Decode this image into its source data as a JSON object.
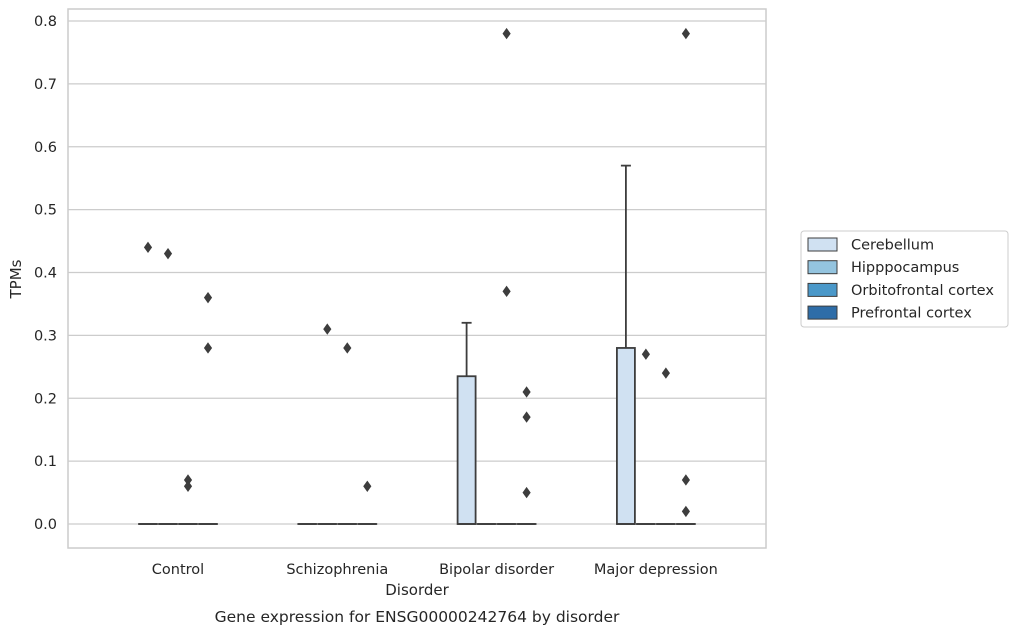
{
  "caption": "Gene expression for ENSG00000242764 by disorder",
  "chart_data": {
    "type": "box",
    "xlabel": "Disorder",
    "ylabel": "TPMs",
    "ylim": [
      -0.038,
      0.82
    ],
    "yticks": [
      0.0,
      0.1,
      0.2,
      0.3,
      0.4,
      0.5,
      0.6,
      0.7,
      0.8
    ],
    "ytick_labels": [
      "0.0",
      "0.1",
      "0.2",
      "0.3",
      "0.4",
      "0.5",
      "0.6",
      "0.7",
      "0.8"
    ],
    "grid": "horizontal",
    "legend_position": "right",
    "categories": [
      "Control",
      "Schizophrenia",
      "Bipolar disorder",
      "Major depression"
    ],
    "series": [
      {
        "name": "Cerebellum",
        "color": "#d0e1f2",
        "boxes": [
          {
            "q1": 0,
            "median": 0,
            "q3": 0,
            "whisker_low": 0,
            "whisker_high": 0,
            "outliers": [
              0.44
            ]
          },
          {
            "q1": 0,
            "median": 0,
            "q3": 0,
            "whisker_low": 0,
            "whisker_high": 0,
            "outliers": []
          },
          {
            "q1": 0,
            "median": 0,
            "q3": 0.235,
            "whisker_low": 0,
            "whisker_high": 0.32,
            "outliers": []
          },
          {
            "q1": 0,
            "median": 0,
            "q3": 0.28,
            "whisker_low": 0,
            "whisker_high": 0.57,
            "outliers": []
          }
        ]
      },
      {
        "name": "Hipppocampus",
        "color": "#94c4df",
        "boxes": [
          {
            "q1": 0,
            "median": 0,
            "q3": 0,
            "whisker_low": 0,
            "whisker_high": 0,
            "outliers": [
              0.43
            ]
          },
          {
            "q1": 0,
            "median": 0,
            "q3": 0,
            "whisker_low": 0,
            "whisker_high": 0,
            "outliers": [
              0.31
            ]
          },
          {
            "q1": 0,
            "median": 0,
            "q3": 0,
            "whisker_low": 0,
            "whisker_high": 0,
            "outliers": []
          },
          {
            "q1": 0,
            "median": 0,
            "q3": 0,
            "whisker_low": 0,
            "whisker_high": 0,
            "outliers": [
              0.27
            ]
          }
        ]
      },
      {
        "name": "Orbitofrontal cortex",
        "color": "#4a98c9",
        "boxes": [
          {
            "q1": 0,
            "median": 0,
            "q3": 0,
            "whisker_low": 0,
            "whisker_high": 0,
            "outliers": [
              0.07,
              0.06
            ]
          },
          {
            "q1": 0,
            "median": 0,
            "q3": 0,
            "whisker_low": 0,
            "whisker_high": 0,
            "outliers": [
              0.28
            ]
          },
          {
            "q1": 0,
            "median": 0,
            "q3": 0,
            "whisker_low": 0,
            "whisker_high": 0,
            "outliers": [
              0.78,
              0.37
            ]
          },
          {
            "q1": 0,
            "median": 0,
            "q3": 0,
            "whisker_low": 0,
            "whisker_high": 0,
            "outliers": [
              0.24
            ]
          }
        ]
      },
      {
        "name": "Prefrontal cortex",
        "color": "#2e6da8",
        "boxes": [
          {
            "q1": 0,
            "median": 0,
            "q3": 0,
            "whisker_low": 0,
            "whisker_high": 0,
            "outliers": [
              0.36,
              0.28
            ]
          },
          {
            "q1": 0,
            "median": 0,
            "q3": 0,
            "whisker_low": 0,
            "whisker_high": 0,
            "outliers": [
              0.06
            ]
          },
          {
            "q1": 0,
            "median": 0,
            "q3": 0,
            "whisker_low": 0,
            "whisker_high": 0,
            "outliers": [
              0.21,
              0.17,
              0.05
            ]
          },
          {
            "q1": 0,
            "median": 0,
            "q3": 0,
            "whisker_low": 0,
            "whisker_high": 0,
            "outliers": [
              0.78,
              0.07,
              0.02
            ]
          }
        ]
      }
    ]
  }
}
